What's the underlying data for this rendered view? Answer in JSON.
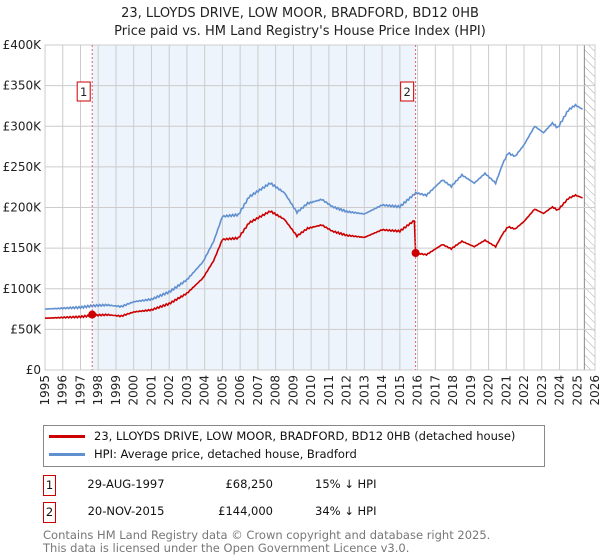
{
  "title": "23, LLOYDS DRIVE, LOW MOOR, BRADFORD, BD12 0HB",
  "subtitle": "Price paid vs. HM Land Registry's House Price Index (HPI)",
  "colors": {
    "property": "#cc0000",
    "hpi": "#6090d0",
    "shade": "#eef4fc"
  },
  "chart_data": {
    "type": "line",
    "title": "23, LLOYDS DRIVE, LOW MOOR, BRADFORD, BD12 0HB",
    "ylabel": "",
    "xlabel": "",
    "xlim": [
      1995,
      2026
    ],
    "ylim": [
      0,
      400000
    ],
    "y_ticks": [
      0,
      50000,
      100000,
      150000,
      200000,
      250000,
      300000,
      350000,
      400000
    ],
    "y_tick_labels": [
      "£0",
      "£50K",
      "£100K",
      "£150K",
      "£200K",
      "£250K",
      "£300K",
      "£350K",
      "£400K"
    ],
    "x_ticks": [
      "1995",
      "1996",
      "1997",
      "1998",
      "1999",
      "2000",
      "2001",
      "2002",
      "2003",
      "2004",
      "2005",
      "2006",
      "2007",
      "2008",
      "2009",
      "2010",
      "2011",
      "2012",
      "2013",
      "2014",
      "2015",
      "2016",
      "2017",
      "2018",
      "2019",
      "2020",
      "2021",
      "2022",
      "2023",
      "2024",
      "2025",
      "2026"
    ],
    "grid": true,
    "series": [
      {
        "name": "HPI: Average price, detached house, Bradford",
        "x": [
          1995,
          1996,
          1997,
          1997.66,
          1998.5,
          1999.3,
          2000,
          2001,
          2002,
          2003,
          2003.9,
          2004.5,
          2005,
          2005.9,
          2006.5,
          2007.7,
          2008.5,
          2009.2,
          2009.8,
          2010.6,
          2011.2,
          2012,
          2013,
          2014,
          2015,
          2015.9,
          2016.5,
          2017.4,
          2017.9,
          2018.5,
          2019.2,
          2019.8,
          2020.4,
          2020.8,
          2021.1,
          2021.5,
          2022,
          2022.6,
          2023.1,
          2023.6,
          2023.9,
          2024.5,
          2024.9,
          2025.3
        ],
        "y": [
          75000,
          76000,
          77000,
          79000,
          80000,
          78000,
          84000,
          87000,
          96000,
          111000,
          133000,
          158000,
          189000,
          191000,
          213000,
          230000,
          218000,
          194000,
          205000,
          210000,
          201000,
          195000,
          192000,
          203000,
          201000,
          218000,
          215000,
          234000,
          226000,
          240000,
          230000,
          242000,
          230000,
          254000,
          267000,
          263000,
          277000,
          300000,
          292000,
          304000,
          298000,
          320000,
          326000,
          321000
        ]
      },
      {
        "name": "23, LLOYDS DRIVE, LOW MOOR, BRADFORD, BD12 0HB (detached house)",
        "ratio_before_sale2": 0.85,
        "ratio_after_sale2": 0.66
      }
    ],
    "sales": [
      {
        "label": "1",
        "x": 1997.66,
        "y": 68250
      },
      {
        "label": "2",
        "x": 2015.89,
        "y": 144000
      }
    ],
    "shaded_range": [
      1997.66,
      2015.89
    ],
    "forecast_from": 2025.4
  },
  "legend": {
    "property": "23, LLOYDS DRIVE, LOW MOOR, BRADFORD, BD12 0HB (detached house)",
    "hpi": "HPI: Average price, detached house, Bradford"
  },
  "transactions": [
    {
      "num": "1",
      "date": "29-AUG-1997",
      "price": "£68,250",
      "hpi": "15% ↓ HPI"
    },
    {
      "num": "2",
      "date": "20-NOV-2015",
      "price": "£144,000",
      "hpi": "34% ↓ HPI"
    }
  ],
  "footer": {
    "line1": "Contains HM Land Registry data © Crown copyright and database right 2025.",
    "line2": "This data is licensed under the Open Government Licence v3.0."
  }
}
